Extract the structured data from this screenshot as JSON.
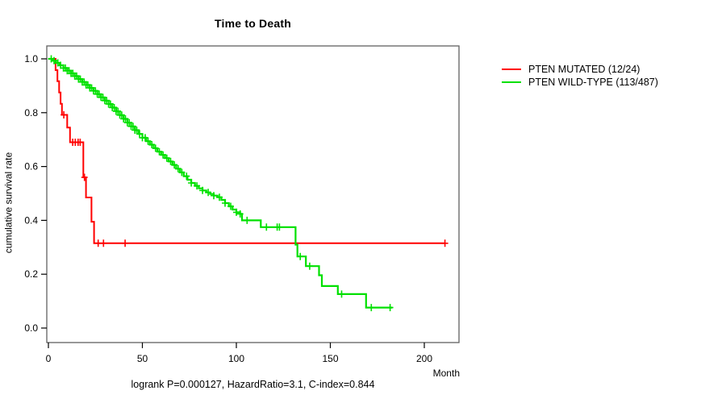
{
  "title": "Time to Death",
  "caption": "logrank P=0.000127, HazardRatio=3.1, C-index=0.844",
  "axes": {
    "x_label": "Month",
    "y_label": "cumulative survival rate",
    "x_tick_labels": [
      "0",
      "50",
      "100",
      "150",
      "200"
    ],
    "x_tick_values": [
      0,
      50,
      100,
      150,
      200
    ],
    "y_tick_labels": [
      "1.0",
      "0.8",
      "0.6",
      "0.4",
      "0.2",
      "0.0"
    ],
    "y_tick_values": [
      1.0,
      0.8,
      0.6,
      0.4,
      0.2,
      0.0
    ]
  },
  "legend": {
    "items": [
      {
        "label": "PTEN MUTATED (12/24)",
        "color": "#ff0000"
      },
      {
        "label": "PTEN WILD-TYPE (113/487)",
        "color": "#00e000"
      }
    ]
  },
  "colors": {
    "mutated": "#ff0000",
    "wildtype": "#00e000",
    "frame": "#606060",
    "axis": "#000000",
    "background": "#ffffff"
  },
  "chart_data": {
    "type": "line",
    "subtype": "kaplan-meier-step",
    "title": "Time to Death",
    "xlabel": "Month",
    "ylabel": "cumulative survival rate",
    "xlim": [
      0,
      218
    ],
    "ylim": [
      0,
      1.04
    ],
    "grid": false,
    "legend_position": "right-outside",
    "series": [
      {
        "name": "PTEN MUTATED (12/24)",
        "color": "#ff0000",
        "events_total": "12/24",
        "steps": [
          [
            0,
            1.0
          ],
          [
            3.8,
            0.958
          ],
          [
            4.8,
            0.917
          ],
          [
            5.7,
            0.875
          ],
          [
            6.5,
            0.833
          ],
          [
            7.2,
            0.792
          ],
          [
            10.0,
            0.745
          ],
          [
            11.5,
            0.69
          ],
          [
            18.6,
            0.56
          ],
          [
            20.0,
            0.485
          ],
          [
            22.9,
            0.395
          ],
          [
            24.3,
            0.315
          ],
          [
            211,
            0.315
          ]
        ],
        "censor_months": [
          8.2,
          12.9,
          14.3,
          15.8,
          16.9,
          19.2,
          26.5,
          29.3,
          40.8,
          211
        ]
      },
      {
        "name": "PTEN WILD-TYPE (113/487)",
        "color": "#00e000",
        "events_total": "113/487",
        "steps": [
          [
            0,
            1.0
          ],
          [
            2,
            0.993
          ],
          [
            4,
            0.985
          ],
          [
            6,
            0.976
          ],
          [
            8,
            0.966
          ],
          [
            10,
            0.956
          ],
          [
            12,
            0.946
          ],
          [
            14,
            0.936
          ],
          [
            16,
            0.925
          ],
          [
            18,
            0.914
          ],
          [
            20,
            0.903
          ],
          [
            22,
            0.892
          ],
          [
            24,
            0.881
          ],
          [
            26,
            0.869
          ],
          [
            28,
            0.857
          ],
          [
            30,
            0.845
          ],
          [
            32,
            0.832
          ],
          [
            34,
            0.819
          ],
          [
            36,
            0.805
          ],
          [
            38,
            0.791
          ],
          [
            40,
            0.777
          ],
          [
            42,
            0.763
          ],
          [
            44,
            0.749
          ],
          [
            46,
            0.735
          ],
          [
            48,
            0.721
          ],
          [
            50,
            0.707
          ],
          [
            52,
            0.694
          ],
          [
            54,
            0.681
          ],
          [
            56,
            0.668
          ],
          [
            58,
            0.655
          ],
          [
            60,
            0.643
          ],
          [
            62,
            0.631
          ],
          [
            64,
            0.619
          ],
          [
            66,
            0.606
          ],
          [
            68,
            0.592
          ],
          [
            70,
            0.578
          ],
          [
            72,
            0.564
          ],
          [
            74,
            0.551
          ],
          [
            76,
            0.539
          ],
          [
            78,
            0.528
          ],
          [
            80,
            0.519
          ],
          [
            82,
            0.511
          ],
          [
            84,
            0.504
          ],
          [
            86,
            0.498
          ],
          [
            88,
            0.492
          ],
          [
            90,
            0.486
          ],
          [
            92,
            0.476
          ],
          [
            94,
            0.464
          ],
          [
            96,
            0.452
          ],
          [
            98,
            0.44
          ],
          [
            100,
            0.43
          ],
          [
            102,
            0.424
          ],
          [
            103,
            0.4
          ],
          [
            113,
            0.375
          ],
          [
            131.5,
            0.31
          ],
          [
            132.5,
            0.266
          ],
          [
            137,
            0.23
          ],
          [
            144,
            0.196
          ],
          [
            145.5,
            0.156
          ],
          [
            154,
            0.126
          ],
          [
            169,
            0.076
          ],
          [
            183,
            0.076
          ]
        ],
        "censor_months": [
          1.5,
          3,
          5,
          6.5,
          8,
          9,
          10,
          11,
          12,
          13,
          14,
          15,
          16,
          17,
          18,
          19,
          20,
          21,
          22,
          23,
          24,
          25,
          26,
          27,
          28,
          29,
          30,
          31,
          32,
          33,
          34,
          35,
          36,
          37,
          38,
          39,
          40,
          41,
          42,
          43,
          44,
          45,
          46,
          47,
          48.5,
          50,
          51.5,
          53,
          55,
          57,
          59,
          61,
          63,
          65,
          67,
          69,
          71,
          73.5,
          76,
          79,
          82,
          85,
          88,
          91,
          94,
          97,
          100,
          102,
          105.7,
          116,
          121.7,
          122.9,
          134,
          139,
          156,
          171.8,
          181.8
        ]
      }
    ]
  }
}
